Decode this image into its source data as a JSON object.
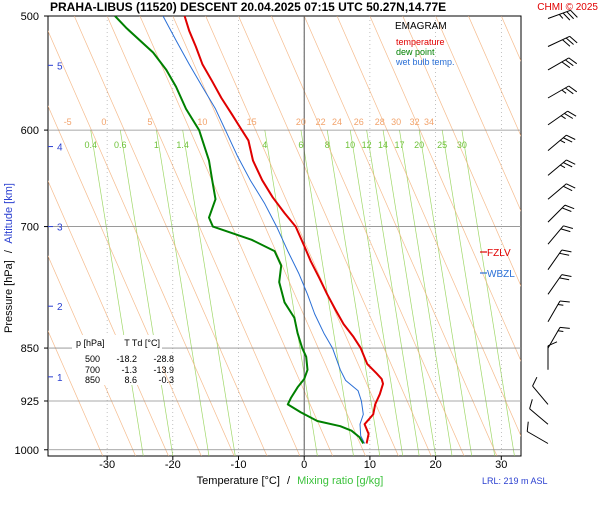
{
  "header": {
    "title": "PRAHA-LIBUS (11520)   DESCENT   20.04.2025 07:15 UTC   50.27N,14.77E",
    "copyright": "CHMI © 2025"
  },
  "legend": {
    "title": "EMAGRAM",
    "items": [
      {
        "label": "temperature",
        "color": "#e00000"
      },
      {
        "label": "dew point",
        "color": "#008000"
      },
      {
        "label": "wet bulb temp.",
        "color": "#2a6fd6"
      }
    ]
  },
  "axes": {
    "ylabel_pressure": "Pressure [hPa]",
    "ylabel_sep": "/",
    "ylabel_altitude": "Altitude [km]",
    "xlabel_temp": "Temperature [°C]",
    "xlabel_sep": "/",
    "xlabel_mix": "Mixing ratio [g/kg]"
  },
  "footer": {
    "lrl": "LRL: 219 m ASL"
  },
  "levels": {
    "fzlv": "FZLV",
    "wbzl": "WBZL"
  },
  "table": {
    "headers": [
      "p [hPa]",
      "T",
      "Td [°C]"
    ],
    "rows": [
      [
        "500",
        "-18.2",
        "-28.8"
      ],
      [
        "700",
        "-1.3",
        "-13.9"
      ],
      [
        "850",
        "8.6",
        "-0.3"
      ]
    ]
  },
  "chart_data": {
    "type": "line",
    "title": "PRAHA-LIBUS (11520)   DESCENT   20.04.2025 07:15 UTC   50.27N,14.77E",
    "diagram": "EMAGRAM",
    "xlabel": "Temperature [°C]",
    "ylabel": "Pressure [hPa]",
    "xlim": [
      -39,
      33
    ],
    "ylim": [
      1010,
      500
    ],
    "y_scale": "log",
    "x_ticks": [
      -30,
      -20,
      -10,
      0,
      10,
      20,
      30
    ],
    "pressure_ticks": [
      500,
      600,
      700,
      850,
      925,
      1000
    ],
    "altitude_ticks_km": [
      {
        "km": "1",
        "p": 890
      },
      {
        "km": "2",
        "p": 795
      },
      {
        "km": "3",
        "p": 700
      },
      {
        "km": "4",
        "p": 616
      },
      {
        "km": "5",
        "p": 541
      }
    ],
    "dry_adiabat_labels": [
      {
        "label": "-5",
        "t": -36
      },
      {
        "label": "0",
        "t": -30.5
      },
      {
        "label": "5",
        "t": -23.5
      },
      {
        "label": "10",
        "t": -15.5
      },
      {
        "label": "15",
        "t": -8
      }
    ],
    "moist_adiabat_labels": [
      {
        "label": "20",
        "t": -0.5
      },
      {
        "label": "22",
        "t": 2.5
      },
      {
        "label": "24",
        "t": 5
      },
      {
        "label": "26",
        "t": 8.3
      },
      {
        "label": "28",
        "t": 11.5
      },
      {
        "label": "30",
        "t": 14
      },
      {
        "label": "32",
        "t": 16.8
      },
      {
        "label": "34",
        "t": 19
      }
    ],
    "mixing_ratio_labels": [
      {
        "label": "0.4",
        "t": -32.5
      },
      {
        "label": "0.6",
        "t": -28
      },
      {
        "label": "1",
        "t": -22.5
      },
      {
        "label": "1.4",
        "t": -18.5
      },
      {
        "label": "4",
        "t": -6
      },
      {
        "label": "6",
        "t": -0.5
      },
      {
        "label": "8",
        "t": 3.5
      },
      {
        "label": "10",
        "t": 7
      },
      {
        "label": "12",
        "t": 9.5
      },
      {
        "label": "14",
        "t": 12
      },
      {
        "label": "17",
        "t": 14.5
      },
      {
        "label": "20",
        "t": 17.5
      },
      {
        "label": "25",
        "t": 21
      },
      {
        "label": "30",
        "t": 24
      }
    ],
    "series": [
      {
        "name": "temperature",
        "color": "#e00000",
        "points": [
          [
            9.5,
            990
          ],
          [
            9.8,
            975
          ],
          [
            9.2,
            960
          ],
          [
            10.5,
            945
          ],
          [
            10.8,
            930
          ],
          [
            11.5,
            915
          ],
          [
            12,
            900
          ],
          [
            11.8,
            893
          ],
          [
            11,
            885
          ],
          [
            9.6,
            872
          ],
          [
            8.6,
            850
          ],
          [
            7.5,
            835
          ],
          [
            6,
            818
          ],
          [
            4.8,
            800
          ],
          [
            3.5,
            780
          ],
          [
            2.3,
            760
          ],
          [
            1,
            740
          ],
          [
            0,
            722
          ],
          [
            -1.3,
            700
          ],
          [
            -3,
            685
          ],
          [
            -4.8,
            668
          ],
          [
            -6.4,
            650
          ],
          [
            -7.8,
            630
          ],
          [
            -8.5,
            610
          ],
          [
            -9.5,
            600
          ],
          [
            -11,
            585
          ],
          [
            -12.6,
            570
          ],
          [
            -14,
            555
          ],
          [
            -15.5,
            540
          ],
          [
            -16.5,
            525
          ],
          [
            -17.5,
            512
          ],
          [
            -18.2,
            500
          ]
        ]
      },
      {
        "name": "dew point",
        "color": "#008000",
        "points": [
          [
            9,
            990
          ],
          [
            8.4,
            980
          ],
          [
            7.2,
            970
          ],
          [
            5.5,
            963
          ],
          [
            2,
            955
          ],
          [
            -0.5,
            942
          ],
          [
            -2.5,
            930
          ],
          [
            -2,
            920
          ],
          [
            -1,
            905
          ],
          [
            0,
            893
          ],
          [
            0.5,
            880
          ],
          [
            0.3,
            862
          ],
          [
            -0.3,
            850
          ],
          [
            -1,
            830
          ],
          [
            -1.5,
            810
          ],
          [
            -3,
            790
          ],
          [
            -3.8,
            765
          ],
          [
            -3.5,
            745
          ],
          [
            -4.5,
            728
          ],
          [
            -8,
            715
          ],
          [
            -13.9,
            700
          ],
          [
            -14.5,
            690
          ],
          [
            -13.5,
            670
          ],
          [
            -14,
            650
          ],
          [
            -14.5,
            630
          ],
          [
            -16,
            600
          ],
          [
            -18,
            580
          ],
          [
            -19.5,
            560
          ],
          [
            -21,
            545
          ],
          [
            -23,
            530
          ],
          [
            -27,
            510
          ],
          [
            -28.8,
            500
          ]
        ]
      },
      {
        "name": "wet bulb temp.",
        "color": "#2a6fd6",
        "points": [
          [
            9.2,
            990
          ],
          [
            8.6,
            978
          ],
          [
            8.5,
            960
          ],
          [
            9,
            945
          ],
          [
            8.7,
            925
          ],
          [
            8.2,
            910
          ],
          [
            6.3,
            895
          ],
          [
            5.5,
            880
          ],
          [
            4.3,
            850
          ],
          [
            3,
            830
          ],
          [
            1.6,
            805
          ],
          [
            0.5,
            780
          ],
          [
            -0.8,
            755
          ],
          [
            -2.5,
            728
          ],
          [
            -4.2,
            700
          ],
          [
            -6,
            675
          ],
          [
            -8.2,
            650
          ],
          [
            -10.2,
            625
          ],
          [
            -12,
            600
          ],
          [
            -13.5,
            580
          ],
          [
            -15.5,
            560
          ],
          [
            -17.5,
            540
          ],
          [
            -19.5,
            520
          ],
          [
            -21.5,
            500
          ]
        ]
      }
    ],
    "wind_barbs": [
      {
        "p": 502,
        "dir": 250,
        "kt": 35
      },
      {
        "p": 525,
        "dir": 245,
        "kt": 30
      },
      {
        "p": 545,
        "dir": 240,
        "kt": 30
      },
      {
        "p": 570,
        "dir": 240,
        "kt": 25
      },
      {
        "p": 595,
        "dir": 235,
        "kt": 25
      },
      {
        "p": 620,
        "dir": 230,
        "kt": 25
      },
      {
        "p": 645,
        "dir": 230,
        "kt": 25
      },
      {
        "p": 670,
        "dir": 230,
        "kt": 20
      },
      {
        "p": 695,
        "dir": 225,
        "kt": 20
      },
      {
        "p": 720,
        "dir": 220,
        "kt": 20
      },
      {
        "p": 750,
        "dir": 215,
        "kt": 20
      },
      {
        "p": 780,
        "dir": 215,
        "kt": 20
      },
      {
        "p": 815,
        "dir": 210,
        "kt": 15
      },
      {
        "p": 850,
        "dir": 210,
        "kt": 15
      },
      {
        "p": 880,
        "dir": 180,
        "kt": 10
      },
      {
        "p": 930,
        "dir": 140,
        "kt": 10
      },
      {
        "p": 960,
        "dir": 130,
        "kt": 10
      },
      {
        "p": 990,
        "dir": 120,
        "kt": 10
      }
    ]
  }
}
